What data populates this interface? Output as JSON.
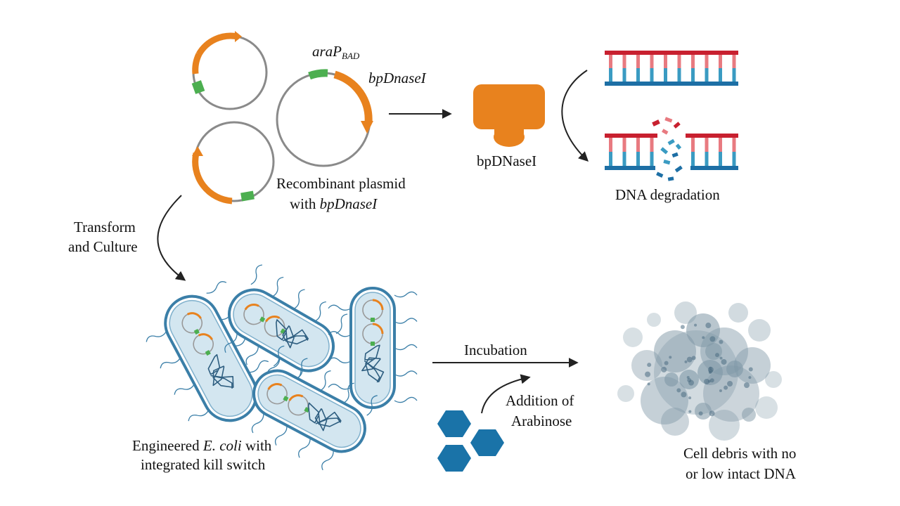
{
  "labels": {
    "promoter_main": "araP",
    "promoter_sub": "BAD",
    "gene": "bpDnaseI",
    "plasmid_line1": "Recombinant plasmid",
    "plasmid_line2_prefix": "with ",
    "plasmid_line2_gene": "bpDnaseI",
    "enzyme": "bpDNaseI",
    "dna_degradation": "DNA degradation",
    "transform_line1": "Transform",
    "transform_line2": "and Culture",
    "ecoli_line1_prefix": "Engineered ",
    "ecoli_line1_species": "E. coli",
    "ecoli_line1_suffix": " with",
    "ecoli_line2": "integrated kill switch",
    "incubation": "Incubation",
    "arabinose_line1": "Addition of",
    "arabinose_line2": "Arabinose",
    "debris_line1": "Cell debris with no",
    "debris_line2": "or low intact DNA"
  },
  "colors": {
    "gene_orange": "#E8821E",
    "promoter_green": "#4CAF50",
    "plasmid_gray": "#8A8A8A",
    "dna_red": "#C8202F",
    "dna_pink": "#E87A80",
    "dna_blue": "#1D6FA5",
    "dna_teal": "#3A9BC2",
    "cell_border": "#3B7FA8",
    "cell_fill": "#D3E6F0",
    "hexagon_blue": "#1A73A8",
    "debris_gray": "#7F97A6",
    "arrow": "#222222"
  }
}
